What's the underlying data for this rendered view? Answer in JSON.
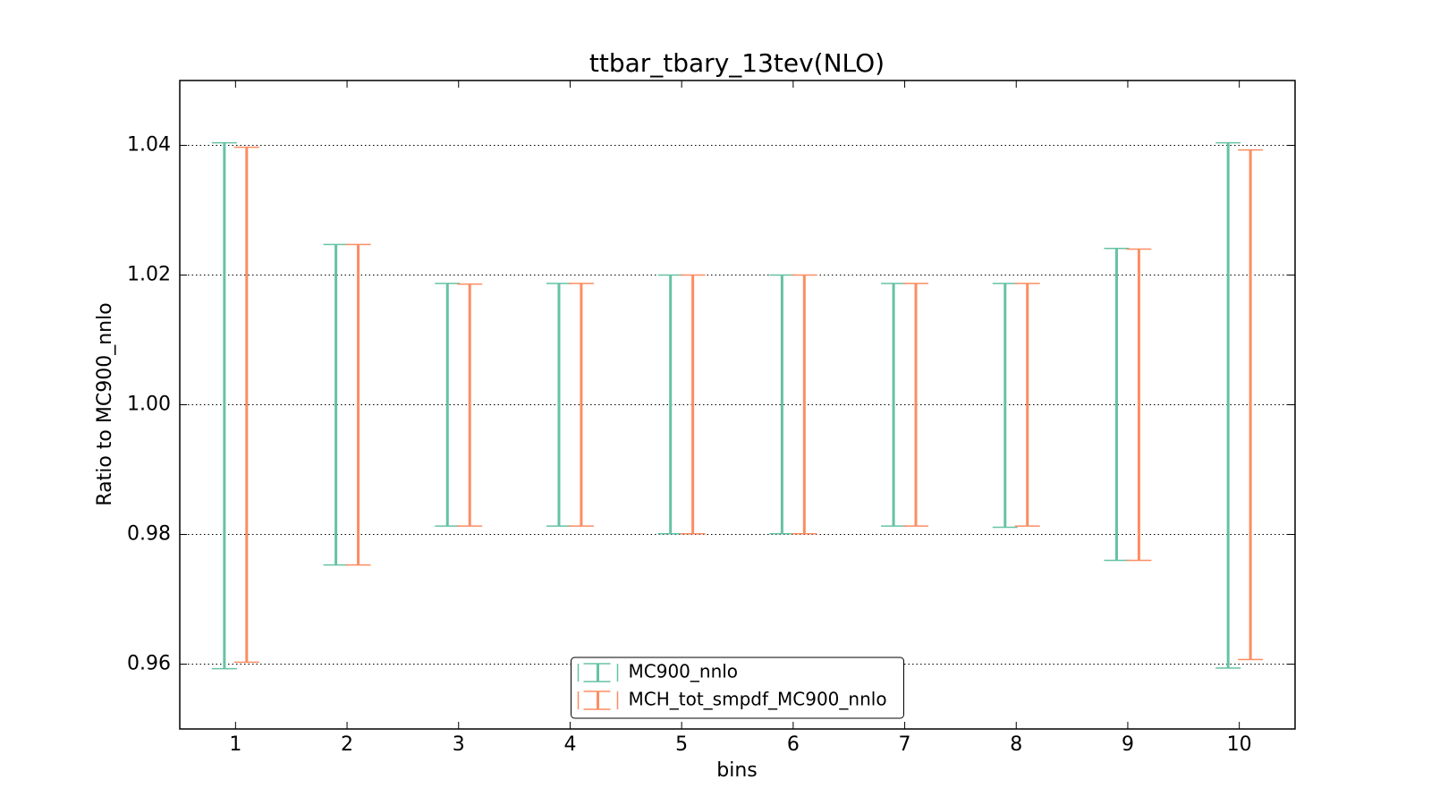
{
  "chart_data": {
    "type": "errorbar",
    "title": "ttbar_tbary_13tev(NLO)",
    "x_label": "bins",
    "y_label": "Ratio to MC900_nnlo",
    "x": [
      1,
      2,
      3,
      4,
      5,
      6,
      7,
      8,
      9,
      10
    ],
    "series": [
      {
        "name": "MC900_nnlo",
        "color": "#66c2a5",
        "offset": -0.1,
        "lower": [
          0.9593,
          0.9753,
          0.9813,
          0.9813,
          0.9801,
          0.9801,
          0.9813,
          0.9811,
          0.976,
          0.9594
        ],
        "upper": [
          1.0404,
          1.0247,
          1.0187,
          1.0187,
          1.02,
          1.02,
          1.0187,
          1.0187,
          1.0241,
          1.0404
        ]
      },
      {
        "name": "MCH_tot_smpdf_MC900_nnlo",
        "color": "#fc8d62",
        "offset": 0.1,
        "lower": [
          0.9603,
          0.9753,
          0.9813,
          0.9813,
          0.9801,
          0.9801,
          0.9813,
          0.9813,
          0.976,
          0.9607
        ],
        "upper": [
          1.0397,
          1.0247,
          1.0186,
          1.0187,
          1.02,
          1.02,
          1.0187,
          1.0187,
          1.024,
          1.0393
        ]
      }
    ],
    "xlim": [
      0.5,
      10.5
    ],
    "xticks": [
      1,
      2,
      3,
      4,
      5,
      6,
      7,
      8,
      9,
      10
    ],
    "ylim": [
      0.95,
      1.05
    ],
    "yticks": [
      0.96,
      0.98,
      {
        "value": 1,
        "label": "1.00"
      },
      1.02,
      1.04
    ],
    "grid": true,
    "legend": "lower center"
  }
}
